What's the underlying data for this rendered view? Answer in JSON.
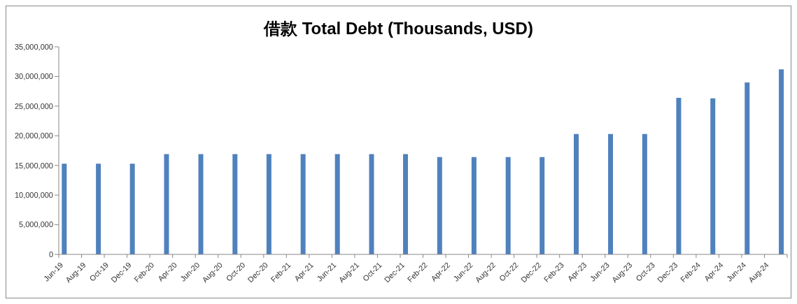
{
  "chart_data": {
    "type": "bar",
    "title": "借款 Total Debt (Thousands, USD)",
    "x": [
      "2019-06-15",
      "2019-09-15",
      "2019-12-15",
      "2020-03-15",
      "2020-06-15",
      "2020-09-15",
      "2020-12-15",
      "2021-03-15",
      "2021-06-15",
      "2021-09-15",
      "2021-12-15",
      "2022-03-15",
      "2022-06-15",
      "2022-09-15",
      "2022-12-15",
      "2023-03-15",
      "2023-06-15",
      "2023-09-15",
      "2023-12-15",
      "2024-03-15",
      "2024-06-15",
      "2024-09-15"
    ],
    "values": [
      15300000,
      15300000,
      15300000,
      16900000,
      16900000,
      16900000,
      16900000,
      16900000,
      16900000,
      16900000,
      16900000,
      16400000,
      16400000,
      16400000,
      16400000,
      20300000,
      20300000,
      20300000,
      26400000,
      26300000,
      29000000,
      31200000
    ],
    "color": "#4f81bd",
    "xlim": [
      "2019-06",
      "2024-10"
    ],
    "xticks": [
      {
        "value": "2019-06",
        "label": "Jun-19"
      },
      {
        "value": "2019-08",
        "label": "Aug-19"
      },
      {
        "value": "2019-10",
        "label": "Oct-19"
      },
      {
        "value": "2019-12",
        "label": "Dec-19"
      },
      {
        "value": "2020-02",
        "label": "Feb-20"
      },
      {
        "value": "2020-04",
        "label": "Apr-20"
      },
      {
        "value": "2020-06",
        "label": "Jun-20"
      },
      {
        "value": "2020-08",
        "label": "Aug-20"
      },
      {
        "value": "2020-10",
        "label": "Oct-20"
      },
      {
        "value": "2020-12",
        "label": "Dec-20"
      },
      {
        "value": "2021-02",
        "label": "Feb-21"
      },
      {
        "value": "2021-04",
        "label": "Apr-21"
      },
      {
        "value": "2021-06",
        "label": "Jun-21"
      },
      {
        "value": "2021-08",
        "label": "Aug-21"
      },
      {
        "value": "2021-10",
        "label": "Oct-21"
      },
      {
        "value": "2021-12",
        "label": "Dec-21"
      },
      {
        "value": "2022-02",
        "label": "Feb-22"
      },
      {
        "value": "2022-04",
        "label": "Apr-22"
      },
      {
        "value": "2022-06",
        "label": "Jun-22"
      },
      {
        "value": "2022-08",
        "label": "Aug-22"
      },
      {
        "value": "2022-10",
        "label": "Oct-22"
      },
      {
        "value": "2022-12",
        "label": "Dec-22"
      },
      {
        "value": "2023-02",
        "label": "Feb-23"
      },
      {
        "value": "2023-04",
        "label": "Apr-23"
      },
      {
        "value": "2023-06",
        "label": "Jun-23"
      },
      {
        "value": "2023-08",
        "label": "Aug-23"
      },
      {
        "value": "2023-10",
        "label": "Oct-23"
      },
      {
        "value": "2023-12",
        "label": "Dec-23"
      },
      {
        "value": "2024-02",
        "label": "Feb-24"
      },
      {
        "value": "2024-04",
        "label": "Apr-24"
      },
      {
        "value": "2024-06",
        "label": "Jun-24"
      },
      {
        "value": "2024-08",
        "label": "Aug-24"
      },
      {
        "value": "2024-10",
        "label": null
      }
    ],
    "ylim": [
      0,
      35000000
    ],
    "yticks": [
      {
        "value": 0,
        "label": "0"
      },
      {
        "value": 5000000,
        "label": "5,000,000"
      },
      {
        "value": 10000000,
        "label": "10,000,000"
      },
      {
        "value": 15000000,
        "label": "15,000,000"
      },
      {
        "value": 20000000,
        "label": "20,000,000"
      },
      {
        "value": 25000000,
        "label": "25,000,000"
      },
      {
        "value": 30000000,
        "label": "30,000,000"
      },
      {
        "value": 35000000,
        "label": "35,000,000"
      }
    ],
    "grid": false,
    "legend": false
  }
}
